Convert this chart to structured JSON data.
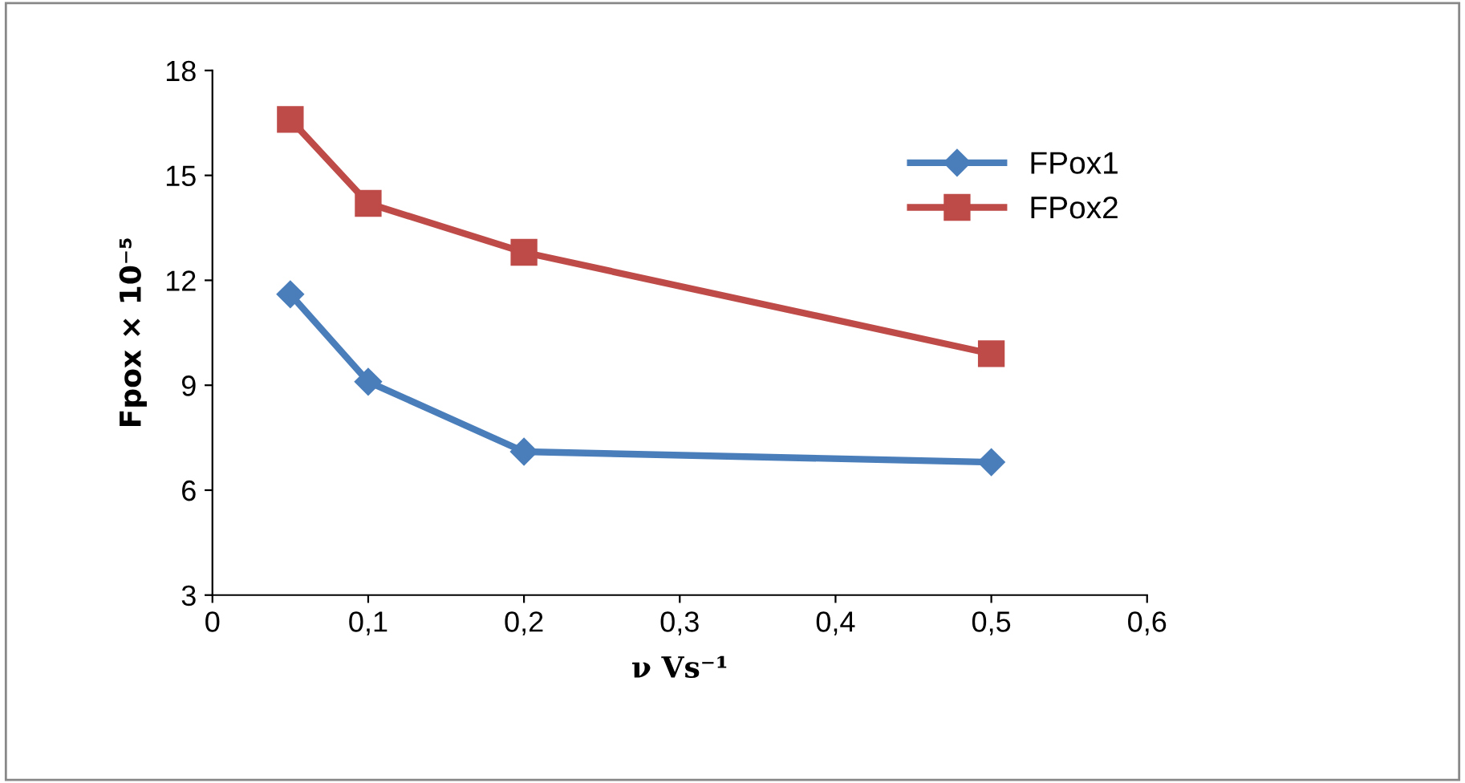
{
  "chart_data": {
    "type": "line",
    "xlabel": "ν Vs⁻¹",
    "ylabel": "Fpox × 10⁻⁵",
    "series": [
      {
        "name": "FPox1",
        "color": "#4a7ebb",
        "marker": "diamond",
        "x": [
          0.05,
          0.1,
          0.2,
          0.5
        ],
        "values": [
          11.6,
          9.1,
          7.1,
          6.8
        ]
      },
      {
        "name": "FPox2",
        "color": "#be4b48",
        "marker": "square",
        "x": [
          0.05,
          0.1,
          0.2,
          0.5
        ],
        "values": [
          16.6,
          14.2,
          12.8,
          9.9
        ]
      }
    ],
    "xlim": [
      0,
      0.6
    ],
    "xticks": [
      0,
      {
        "value": 0.1,
        "label": "0,1"
      },
      {
        "value": 0.2,
        "label": "0,2"
      },
      {
        "value": 0.3,
        "label": "0,3"
      },
      {
        "value": 0.4,
        "label": "0,4"
      },
      {
        "value": 0.5,
        "label": "0,5"
      },
      {
        "value": 0.6,
        "label": "0,6"
      }
    ],
    "ylim": [
      3,
      18
    ],
    "yticks": [
      3,
      6,
      9,
      12,
      15,
      18
    ],
    "grid": false,
    "legend": "top right",
    "line_style": "solid"
  }
}
